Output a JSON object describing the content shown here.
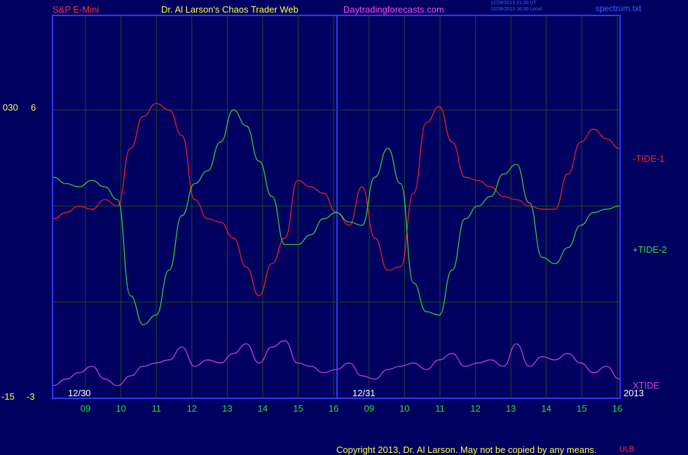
{
  "header": {
    "instrument": "S&P E-Mini",
    "site_title": "Dr. Al Larson's Chaos Trader Web",
    "site_url": "Daytradingforecasts.com",
    "stamp_line1": "12/28/2013 21:30 UT",
    "stamp_line2": "12/28/2013 16:30 Local",
    "file_name": "spectrum.txt"
  },
  "footer": {
    "copyright": "Copyright 2013, Dr. Al Larson. May not be copied by any means.",
    "corner_mark": "ULB"
  },
  "colors": {
    "background": "#000060",
    "plot_border": "#2a3cff",
    "grid": "#1f4a1f",
    "tide1": "#ff2020",
    "tide2": "#33dd33",
    "xtide": "#e040e0",
    "tick_label": "#33dd33",
    "axis_text": "#ffff40"
  },
  "chart_data": {
    "type": "line",
    "x_ticks": [
      "09",
      "10",
      "11",
      "12",
      "13",
      "14",
      "15",
      "16",
      "09",
      "10",
      "11",
      "12",
      "13",
      "14",
      "15",
      "16"
    ],
    "date_labels": [
      "12/30",
      "12/31"
    ],
    "year_label": "2013",
    "left_axis": {
      "top_outer": "030",
      "top_inner": "6",
      "bottom_outer": "-15",
      "bottom_inner": "-3"
    },
    "series": [
      {
        "name": "-TIDE-1",
        "values": [
          2.6,
          2.8,
          3.0,
          2.9,
          3.2,
          3.0,
          4.8,
          5.8,
          6.2,
          6.0,
          5.2,
          3.2,
          2.6,
          2.5,
          2.0,
          1.1,
          0.2,
          1.2,
          2.0,
          3.8,
          3.6,
          3.4,
          2.8,
          2.4,
          3.6,
          2.0,
          1.0,
          1.1,
          3.4,
          5.6,
          6.1,
          5.0,
          3.9,
          3.8,
          3.6,
          3.3,
          3.2,
          3.0,
          2.9,
          2.9,
          4.0,
          5.0,
          5.4,
          5.1,
          4.8
        ]
      },
      {
        "name": "+TIDE-2",
        "values": [
          3.9,
          3.7,
          3.6,
          3.8,
          3.6,
          3.2,
          0.2,
          -0.7,
          -0.4,
          1.0,
          2.7,
          3.7,
          4.1,
          5.0,
          6.0,
          5.5,
          4.4,
          3.3,
          1.8,
          1.8,
          2.1,
          2.6,
          2.8,
          2.5,
          2.4,
          3.9,
          4.8,
          3.7,
          0.6,
          -0.3,
          -0.4,
          1.0,
          2.6,
          3.0,
          3.3,
          4.0,
          4.3,
          3.1,
          1.4,
          1.2,
          1.7,
          2.4,
          2.8,
          2.9,
          3.0
        ]
      },
      {
        "name": "XTIDE",
        "values": [
          -2.6,
          -2.4,
          -2.2,
          -2.0,
          -2.4,
          -2.6,
          -2.3,
          -2.0,
          -1.9,
          -1.8,
          -1.4,
          -2.0,
          -1.8,
          -1.9,
          -1.6,
          -1.3,
          -1.9,
          -1.4,
          -1.2,
          -1.9,
          -2.0,
          -2.2,
          -2.1,
          -1.9,
          -2.3,
          -2.4,
          -2.1,
          -2.0,
          -1.9,
          -2.1,
          -1.8,
          -1.6,
          -2.0,
          -1.9,
          -1.8,
          -2.0,
          -1.3,
          -2.0,
          -1.7,
          -1.8,
          -1.6,
          -1.9,
          -2.2,
          -2.0,
          -2.4
        ]
      }
    ],
    "ylim": [
      -3,
      6
    ],
    "grid": true,
    "legend_placement": "right"
  }
}
